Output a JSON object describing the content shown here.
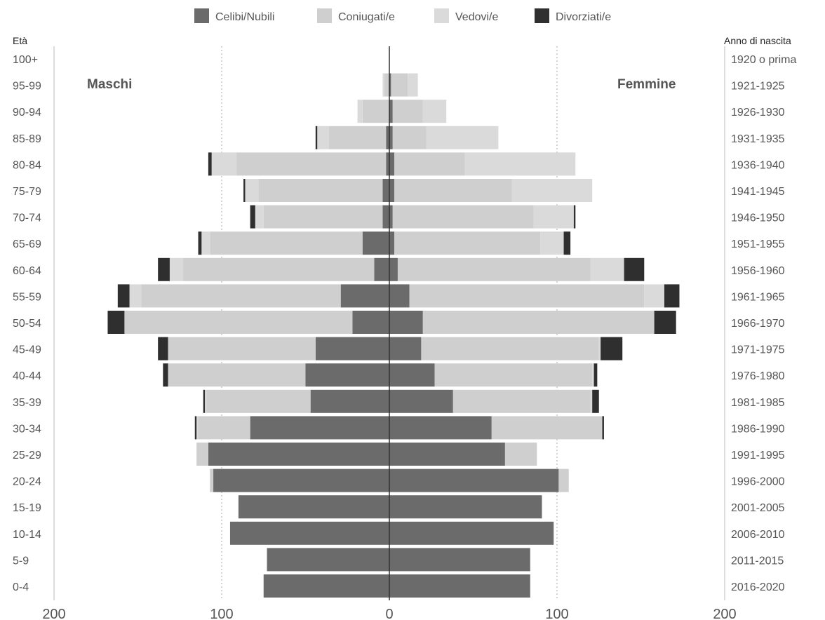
{
  "chart_data": {
    "type": "bar",
    "orientation": "horizontal",
    "layout": "population-pyramid",
    "legend": {
      "position": "top",
      "items": [
        {
          "name": "Celibi/Nubili",
          "color": "#6b6b6b"
        },
        {
          "name": "Coniugati/e",
          "color": "#cfcfcf"
        },
        {
          "name": "Vedovi/e",
          "color": "#dadada"
        },
        {
          "name": "Divorziati/e",
          "color": "#2f2f2f"
        }
      ]
    },
    "left_axis_title": "Età",
    "right_axis_title": "Anno di nascita",
    "left_side_label": "Maschi",
    "right_side_label": "Femmine",
    "xlim": [
      -200,
      200
    ],
    "x_ticks": [
      -200,
      -100,
      0,
      100,
      200
    ],
    "x_tick_labels": [
      "200",
      "100",
      "0",
      "100",
      "200"
    ],
    "grid": "vertical dotted at 100",
    "age_groups": [
      "100+",
      "95-99",
      "90-94",
      "85-89",
      "80-84",
      "75-79",
      "70-74",
      "65-69",
      "60-64",
      "55-59",
      "50-54",
      "45-49",
      "40-44",
      "35-39",
      "30-34",
      "25-29",
      "20-24",
      "15-19",
      "10-14",
      "5-9",
      "0-4"
    ],
    "birth_years": [
      "1920 o prima",
      "1921-1925",
      "1926-1930",
      "1931-1935",
      "1936-1940",
      "1941-1945",
      "1946-1950",
      "1951-1955",
      "1956-1960",
      "1961-1965",
      "1966-1970",
      "1971-1975",
      "1976-1980",
      "1981-1985",
      "1986-1990",
      "1991-1995",
      "1996-2000",
      "2001-2005",
      "2006-2010",
      "2011-2015",
      "2016-2020"
    ],
    "males": {
      "Celibi/Nubili": [
        0,
        0,
        0,
        2,
        2,
        4,
        4,
        16,
        9,
        29,
        22,
        44,
        50,
        47,
        83,
        108,
        105,
        90,
        95,
        73,
        75
      ],
      "Coniugati/e": [
        0,
        3,
        16,
        34,
        89,
        74,
        71,
        91,
        114,
        119,
        136,
        88,
        82,
        62,
        31,
        7,
        2,
        0,
        0,
        0,
        0
      ],
      "Vedovi/e": [
        0,
        1,
        3,
        7,
        15,
        8,
        5,
        5,
        8,
        7,
        0,
        0,
        0,
        1,
        1,
        0,
        0,
        0,
        0,
        0,
        0
      ],
      "Divorziati/e": [
        0,
        0,
        0,
        1,
        2,
        1,
        3,
        2,
        7,
        7,
        10,
        6,
        3,
        1,
        1,
        0,
        0,
        0,
        0,
        0,
        0
      ]
    },
    "females": {
      "Celibi/Nubili": [
        0,
        1,
        2,
        2,
        3,
        3,
        2,
        3,
        5,
        12,
        20,
        19,
        27,
        38,
        61,
        69,
        101,
        91,
        98,
        84,
        84
      ],
      "Coniugati/e": [
        0,
        10,
        18,
        20,
        42,
        70,
        84,
        87,
        115,
        140,
        138,
        106,
        94,
        82,
        66,
        19,
        6,
        0,
        0,
        0,
        0
      ],
      "Vedovi/e": [
        0,
        6,
        14,
        43,
        66,
        48,
        24,
        14,
        20,
        12,
        0,
        1,
        1,
        1,
        0,
        0,
        0,
        0,
        0,
        0,
        0
      ],
      "Divorziati/e": [
        0,
        0,
        0,
        0,
        0,
        0,
        1,
        4,
        12,
        9,
        13,
        13,
        2,
        4,
        1,
        0,
        0,
        0,
        0,
        0,
        0
      ]
    }
  }
}
